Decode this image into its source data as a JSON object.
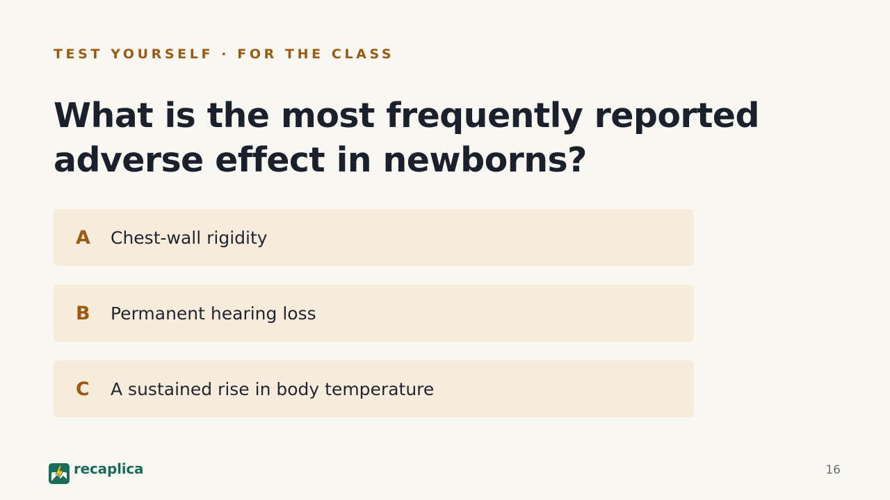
{
  "slide": {
    "eyebrow": "TEST YOURSELF · FOR THE CLASS",
    "question": "What is the most frequently reported adverse effect in newborns?",
    "options": [
      {
        "letter": "A",
        "text": "Chest-wall rigidity"
      },
      {
        "letter": "B",
        "text": "Permanent hearing loss"
      },
      {
        "letter": "C",
        "text": "A sustained rise in body temperature"
      }
    ]
  },
  "footer": {
    "brand_name": "recaplica",
    "brand_icon": "lightning-image-icon",
    "page_number": "16"
  },
  "colors": {
    "background": "#f9f7f2",
    "accent": "#9a5a12",
    "option_background": "#f7ecdc",
    "heading": "#1a202c",
    "brand": "#1a6b5a"
  }
}
